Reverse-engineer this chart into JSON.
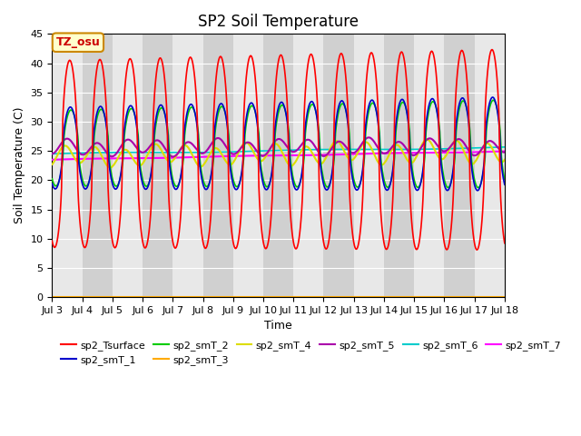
{
  "title": "SP2 Soil Temperature",
  "ylabel": "Soil Temperature (C)",
  "xlabel": "Time",
  "ylim": [
    0,
    45
  ],
  "xlim_hours": 360,
  "annotation": "TZ_osu",
  "colors": {
    "sp2_Tsurface": "#ff0000",
    "sp2_smT_1": "#0000cc",
    "sp2_smT_2": "#00cc00",
    "sp2_smT_3": "#ffaa00",
    "sp2_smT_4": "#dddd00",
    "sp2_smT_5": "#aa00aa",
    "sp2_smT_6": "#00cccc",
    "sp2_smT_7": "#ff00ff"
  },
  "xtick_labels": [
    "Jul 3",
    "Jul 4",
    "Jul 5",
    "Jul 6",
    "Jul 7",
    "Jul 8",
    "Jul 9",
    "Jul 10",
    "Jul 11",
    "Jul 12",
    "Jul 13",
    "Jul 14",
    "Jul 15",
    "Jul 16",
    "Jul 17",
    "Jul 18"
  ],
  "xtick_positions": [
    0,
    24,
    48,
    72,
    96,
    120,
    144,
    168,
    192,
    216,
    240,
    264,
    288,
    312,
    336,
    360
  ],
  "yticks": [
    0,
    5,
    10,
    15,
    20,
    25,
    30,
    35,
    40,
    45
  ],
  "band_colors": [
    "#e8e8e8",
    "#d0d0d0"
  ],
  "title_fontsize": 12,
  "axis_fontsize": 9,
  "tick_fontsize": 8
}
